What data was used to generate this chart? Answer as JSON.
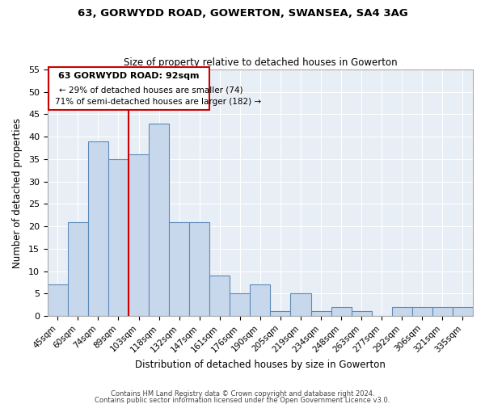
{
  "title": "63, GORWYDD ROAD, GOWERTON, SWANSEA, SA4 3AG",
  "subtitle": "Size of property relative to detached houses in Gowerton",
  "xlabel": "Distribution of detached houses by size in Gowerton",
  "ylabel": "Number of detached properties",
  "bin_labels": [
    "45sqm",
    "60sqm",
    "74sqm",
    "89sqm",
    "103sqm",
    "118sqm",
    "132sqm",
    "147sqm",
    "161sqm",
    "176sqm",
    "190sqm",
    "205sqm",
    "219sqm",
    "234sqm",
    "248sqm",
    "263sqm",
    "277sqm",
    "292sqm",
    "306sqm",
    "321sqm",
    "335sqm"
  ],
  "bar_heights": [
    7,
    21,
    39,
    35,
    36,
    43,
    21,
    21,
    9,
    5,
    7,
    1,
    5,
    1,
    2,
    1,
    0,
    2,
    2,
    2,
    2
  ],
  "bar_color": "#c8d8ec",
  "bar_edge_color": "#5b8ab8",
  "vline_color": "#cc0000",
  "vline_x_index": 3,
  "annotation_title": "63 GORWYDD ROAD: 92sqm",
  "annotation_line1": "← 29% of detached houses are smaller (74)",
  "annotation_line2": "71% of semi-detached houses are larger (182) →",
  "annotation_box_color": "#ffffff",
  "annotation_box_edge_color": "#cc0000",
  "plot_bg_color": "#e8eef5",
  "grid_color": "#ffffff",
  "ylim": [
    0,
    55
  ],
  "yticks": [
    0,
    5,
    10,
    15,
    20,
    25,
    30,
    35,
    40,
    45,
    50,
    55
  ],
  "footer1": "Contains HM Land Registry data © Crown copyright and database right 2024.",
  "footer2": "Contains public sector information licensed under the Open Government Licence v3.0."
}
